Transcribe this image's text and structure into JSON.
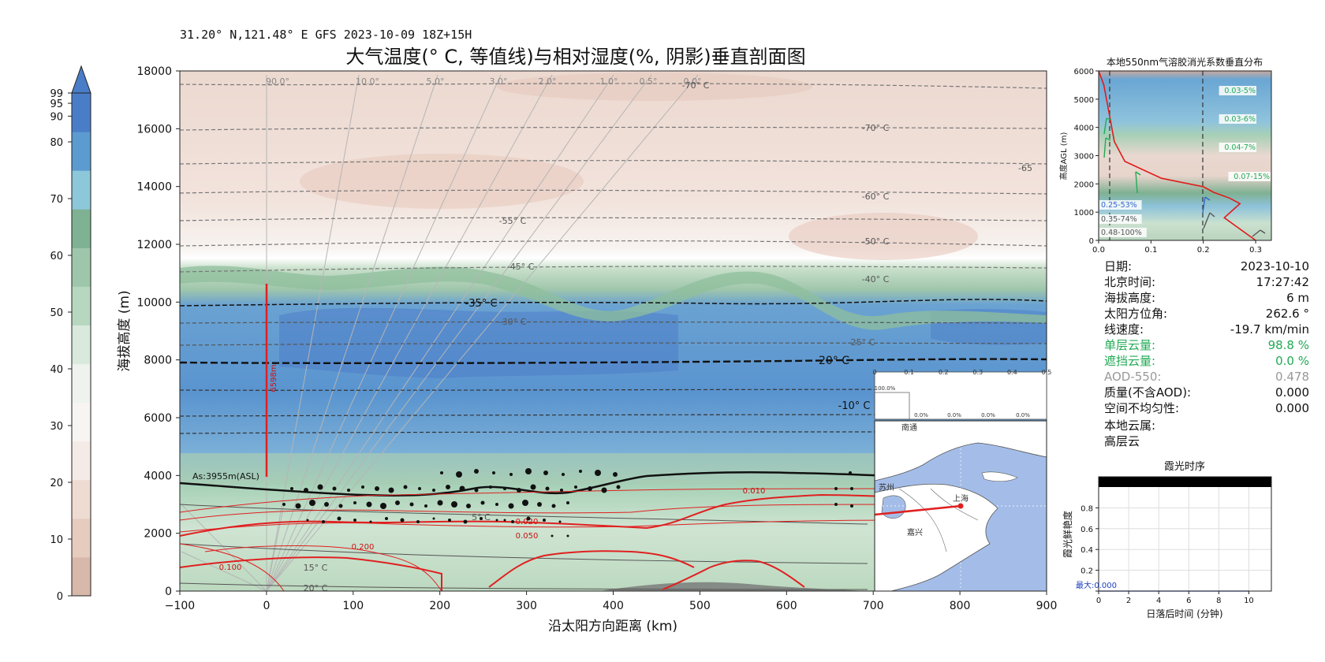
{
  "header": {
    "location_line": "31.20° N,121.48° E GFS 2023-10-09 18Z+15H",
    "title": "大气温度(° C, 等值线)与相对湿度(%, 阴影)垂直剖面图"
  },
  "colors": {
    "cloud_line": "#cc1111",
    "aerosol_line": "#e21a1a",
    "green_label": "#22aa55",
    "axis": "#111111",
    "cloud_base_line": "#111111"
  },
  "colorbar": {
    "ticks": [
      "0",
      "10",
      "20",
      "30",
      "40",
      "50",
      "60",
      "70",
      "80",
      "90",
      "95",
      "99"
    ],
    "colors": [
      "#d8b8aa",
      "#e6cbbf",
      "#eedbd2",
      "#f5ebe6",
      "#f7f4f1",
      "#eef3ee",
      "#d9e9db",
      "#b7d8bf",
      "#9ec6ab",
      "#7fb193",
      "#8cc7da",
      "#5b9bd0",
      "#4a7dc7"
    ]
  },
  "main_chart": {
    "xlabel": "沿太阳方向距离 (km)",
    "ylabel": "海拔高度 (m)",
    "x_ticks": [
      "−100",
      "0",
      "100",
      "200",
      "300",
      "400",
      "500",
      "600",
      "700",
      "800",
      "900"
    ],
    "y_ticks": [
      "0",
      "2000",
      "4000",
      "6000",
      "8000",
      "10000",
      "12000",
      "14000",
      "16000",
      "18000"
    ],
    "xlim": [
      -100,
      900
    ],
    "ylim": [
      0,
      18000
    ],
    "cloud_top_label": "6598m",
    "cloud_base_label": "As:3955m(ASL)",
    "temperature_labels": [
      "-70° C",
      "-70° C",
      "-65",
      "-60° C",
      "-55° C",
      "-50° C",
      "-45° C",
      "-40° C",
      "-35° C",
      "-30° C",
      "-25° C",
      "-20° C",
      "-10° C",
      "5° C",
      "15° C",
      "20° C"
    ],
    "elevation_angle_labels": [
      "90.0°",
      "10.0°",
      "5.0°",
      "3.0°",
      "2.0°",
      "1.0°",
      "0.5°",
      "0.0°"
    ],
    "aerosol_labels": [
      "0.010",
      "0.020",
      "0.050",
      "0.100",
      "0.200"
    ]
  },
  "inset_cloud_chart": {
    "x_ticks": [
      "0",
      "0.1",
      "0.2",
      "0.3",
      "0.4",
      "0.5"
    ],
    "values_text": [
      "100.0%",
      "0.0%",
      "0.0%",
      "0.0%",
      "0.0%",
      "0.0%"
    ]
  },
  "map": {
    "city_labels": [
      "南通",
      "苏州",
      "上海",
      "嘉兴"
    ]
  },
  "aerosol_chart": {
    "title": "本地550nm气溶胶消光系数垂直分布",
    "ylabel": "高度AGL (m)",
    "x_ticks": [
      "0.0",
      "0.1",
      "0.2",
      "0.3"
    ],
    "y_ticks": [
      "0",
      "1000",
      "2000",
      "3000",
      "4000",
      "5000",
      "6000"
    ],
    "layer_labels": [
      "0.03-5%",
      "0.03-6%",
      "0.04-7%",
      "0.07-15%",
      "0.25-53%",
      "0.35-74%",
      "0.48-100%"
    ],
    "chart_data": {
      "type": "line",
      "x": [
        0.0,
        0.01,
        0.02,
        0.03,
        0.05,
        0.12,
        0.2,
        0.22,
        0.25,
        0.27,
        0.24,
        0.3
      ],
      "y": [
        6000,
        5500,
        4500,
        3500,
        2800,
        2200,
        1900,
        1700,
        1500,
        1300,
        800,
        0
      ],
      "xlim": [
        0,
        0.33
      ],
      "ylim": [
        0,
        6000
      ]
    }
  },
  "info_panel": {
    "rows": [
      {
        "label": "日期:",
        "value": "2023-10-10",
        "color": "#111111"
      },
      {
        "label": "北京时间:",
        "value": "17:27:42",
        "color": "#111111"
      },
      {
        "label": "海拔高度:",
        "value": "6 m",
        "color": "#111111"
      },
      {
        "label": "太阳方位角:",
        "value": "262.6 °",
        "color": "#111111"
      },
      {
        "label": "线速度:",
        "value": "-19.7 km/min",
        "color": "#111111"
      },
      {
        "label": "单层云量:",
        "value": "98.8 %",
        "color": "#22aa55"
      },
      {
        "label": "遮挡云量:",
        "value": "0.0 %",
        "color": "#22aa55"
      },
      {
        "label": "AOD-550:",
        "value": "0.478",
        "color": "#999999"
      },
      {
        "label": "质量(不含AOD):",
        "value": "0.000",
        "color": "#111111"
      },
      {
        "label": "空间不均匀性:",
        "value": "0.000",
        "color": "#111111"
      }
    ],
    "cloud_genus_label": "本地云属:",
    "cloud_genus_value": "高层云"
  },
  "glow_chart": {
    "title": "霞光时序",
    "xlabel": "日落后时间 (分钟)",
    "ylabel": "霞光鲜艳度",
    "x_ticks": [
      "0",
      "2",
      "4",
      "6",
      "8",
      "10"
    ],
    "y_ticks": [
      "0",
      "0.2",
      "0.4",
      "0.6",
      "0.8"
    ],
    "max_label": "最大:0.000",
    "chart_data": {
      "type": "line",
      "x": [
        0,
        2,
        4,
        6,
        8,
        10
      ],
      "y": [
        0,
        0,
        0,
        0,
        0,
        0
      ],
      "xlim": [
        0,
        11.5
      ],
      "ylim": [
        0,
        1
      ]
    }
  }
}
